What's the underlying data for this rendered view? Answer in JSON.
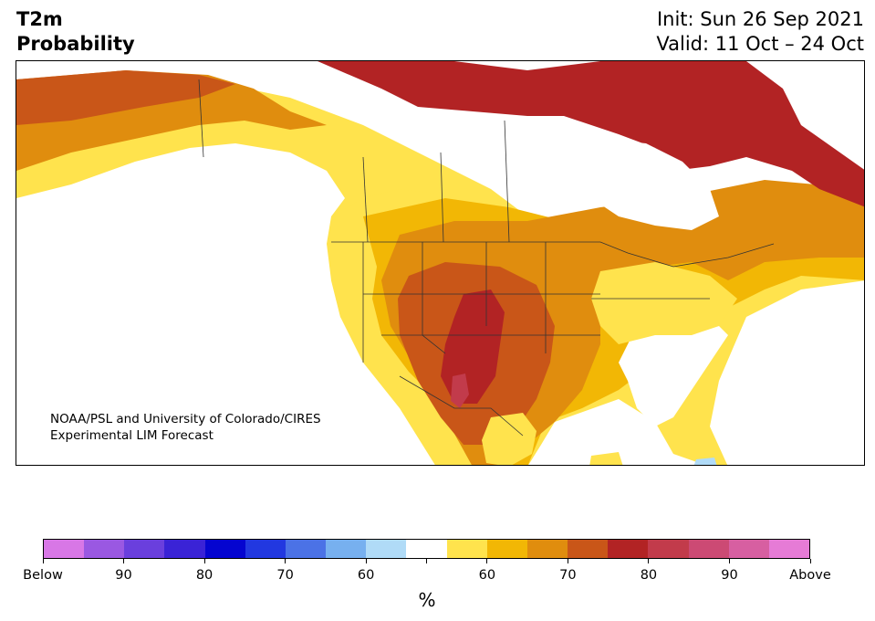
{
  "title": {
    "line1": "T2m",
    "line2": "Probability",
    "init": "Init: Sun 26 Sep 2021",
    "valid": "Valid: 11 Oct – 24 Oct"
  },
  "credit": {
    "line1": "NOAA/PSL and University of Colorado/CIRES",
    "line2": "Experimental LIM Forecast"
  },
  "legend": {
    "unit": "%",
    "colors": [
      "#d877e6",
      "#9a58e2",
      "#6a3fdd",
      "#3a23d6",
      "#0505d0",
      "#2238e0",
      "#4b72e6",
      "#77b0ef",
      "#b0dbf7",
      "#ffffff",
      "#ffe34d",
      "#f2b705",
      "#e08d0e",
      "#c95618",
      "#b22324",
      "#c23b4b",
      "#cc4a74",
      "#d75fa1",
      "#e67bd6"
    ],
    "labels": [
      "Below",
      "90",
      "80",
      "70",
      "60",
      "",
      "60",
      "70",
      "80",
      "90",
      "Above"
    ]
  },
  "map_colors": {
    "p55": "#ffe34d",
    "p60": "#f2b705",
    "p65": "#e08d0e",
    "p70": "#c95618",
    "p75": "#b22324",
    "p80": "#c23b4b",
    "blue55": "#b0dbf7",
    "land": "#ffffff",
    "border": "#333333"
  }
}
